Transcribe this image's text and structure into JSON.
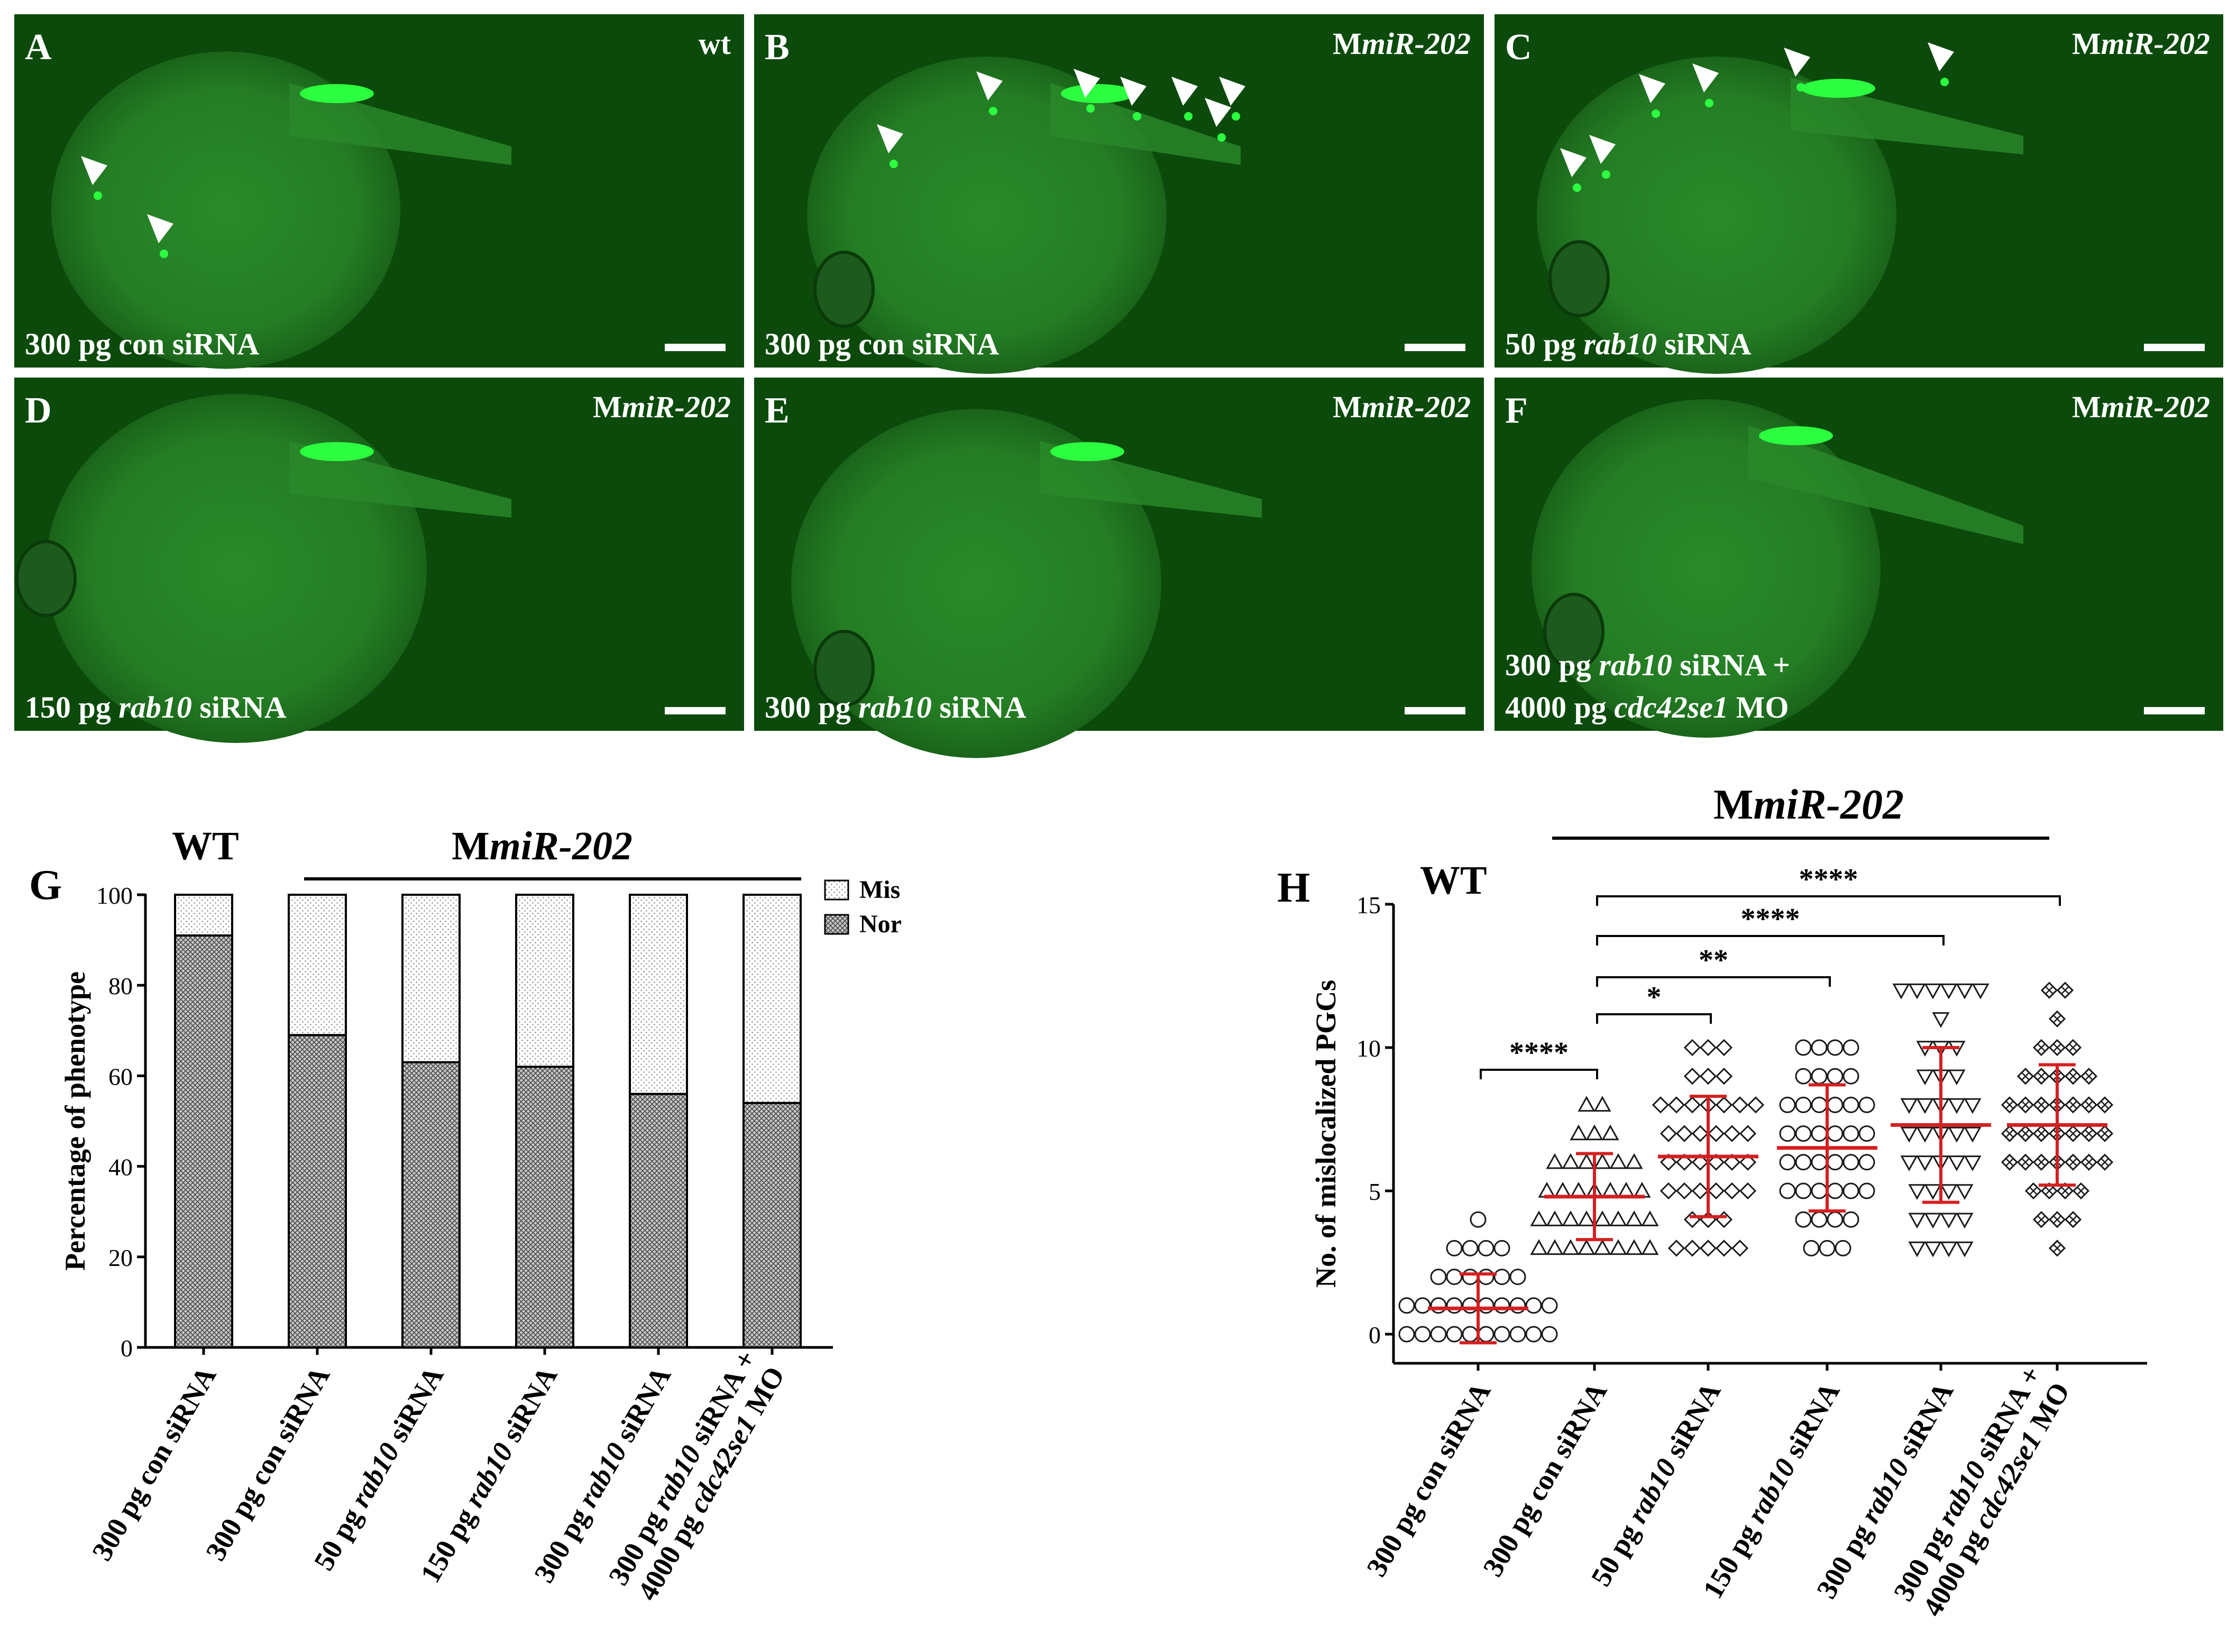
{
  "panels": [
    {
      "letter": "A",
      "genotype": "wt",
      "label_lines": [
        [
          {
            "t": "300 pg con siRNA",
            "i": false
          }
        ]
      ]
    },
    {
      "letter": "B",
      "genotype_prefix": "M",
      "genotype_italic": "miR-202",
      "label_lines": [
        [
          {
            "t": "300 pg con siRNA",
            "i": false
          }
        ]
      ]
    },
    {
      "letter": "C",
      "genotype_prefix": "M",
      "genotype_italic": "miR-202",
      "label_lines": [
        [
          {
            "t": "50 pg ",
            "i": false
          },
          {
            "t": "rab10",
            "i": true
          },
          {
            "t": " siRNA",
            "i": false
          }
        ]
      ]
    },
    {
      "letter": "D",
      "genotype_prefix": "M",
      "genotype_italic": "miR-202",
      "label_lines": [
        [
          {
            "t": "150 pg ",
            "i": false
          },
          {
            "t": "rab10",
            "i": true
          },
          {
            "t": " siRNA",
            "i": false
          }
        ]
      ]
    },
    {
      "letter": "E",
      "genotype_prefix": "M",
      "genotype_italic": "miR-202",
      "label_lines": [
        [
          {
            "t": "300 pg ",
            "i": false
          },
          {
            "t": "rab10",
            "i": true
          },
          {
            "t": " siRNA",
            "i": false
          }
        ]
      ]
    },
    {
      "letter": "F",
      "genotype_prefix": "M",
      "genotype_italic": "miR-202",
      "label_lines": [
        [
          {
            "t": "300 pg ",
            "i": false
          },
          {
            "t": "rab10",
            "i": true
          },
          {
            "t": " siRNA +",
            "i": false
          }
        ],
        [
          {
            "t": "4000 pg ",
            "i": false
          },
          {
            "t": "cdc42se1",
            "i": true
          },
          {
            "t": " MO",
            "i": false
          }
        ]
      ]
    }
  ],
  "categories": [
    [
      {
        "t": "300 pg con siRNA",
        "i": false
      }
    ],
    [
      {
        "t": "300 pg con siRNA",
        "i": false
      }
    ],
    [
      {
        "t": "50 pg ",
        "i": false
      },
      {
        "t": "rab10",
        "i": true
      },
      {
        "t": " siRNA",
        "i": false
      }
    ],
    [
      {
        "t": "150 pg ",
        "i": false
      },
      {
        "t": "rab10",
        "i": true
      },
      {
        "t": " siRNA",
        "i": false
      }
    ],
    [
      {
        "t": "300 pg ",
        "i": false
      },
      {
        "t": "rab10",
        "i": true
      },
      {
        "t": " siRNA",
        "i": false
      }
    ],
    [
      {
        "t": "300 pg ",
        "i": false
      },
      {
        "t": "rab10",
        "i": true
      },
      {
        "t": " siRNA +",
        "i": false
      },
      {
        "br": true
      },
      {
        "t": "4000 pg ",
        "i": false
      },
      {
        "t": "cdc42se1",
        "i": true
      },
      {
        "t": " MO",
        "i": false
      }
    ]
  ],
  "colors": {
    "panel_green": "#0b4a0b",
    "signal": "#2cff40",
    "error_bar": "#d42020"
  },
  "chart_data": [
    {
      "panel": "G",
      "type": "bar",
      "stacked": true,
      "wt_label": "WT",
      "group_label_prefix": "M",
      "group_label_italic": "miR-202",
      "ylabel": "Percentage of phenotype",
      "ylim": [
        0,
        100
      ],
      "yticks": [
        0,
        20,
        40,
        60,
        80,
        100
      ],
      "series": [
        {
          "name": "Nor",
          "values": [
            91,
            69,
            63,
            62,
            56,
            54
          ]
        },
        {
          "name": "Mis",
          "values": [
            9,
            31,
            37,
            38,
            44,
            46
          ]
        }
      ],
      "legend_position": "top-right"
    },
    {
      "panel": "H",
      "type": "scatter",
      "wt_label": "WT",
      "group_label_prefix": "M",
      "group_label_italic": "miR-202",
      "ylabel": "No. of mislocalized PGCs",
      "ylim": [
        0,
        15
      ],
      "yticks": [
        0,
        5,
        10,
        15
      ],
      "markers": [
        "circle",
        "triangle-up",
        "diamond",
        "circle",
        "triangle-down",
        "diamond-x"
      ],
      "groups": [
        {
          "mean": 0.9,
          "sd": 1.2,
          "counts": {
            "0": 10,
            "1": 10,
            "2": 6,
            "3": 4,
            "4": 1
          }
        },
        {
          "mean": 4.8,
          "sd": 1.5,
          "counts": {
            "3": 8,
            "4": 8,
            "5": 7,
            "6": 6,
            "7": 3,
            "8": 2
          }
        },
        {
          "mean": 6.2,
          "sd": 2.1,
          "counts": {
            "3": 5,
            "4": 3,
            "5": 6,
            "6": 6,
            "7": 6,
            "8": 7,
            "9": 3,
            "10": 3
          }
        },
        {
          "mean": 6.5,
          "sd": 2.2,
          "counts": {
            "3": 3,
            "4": 4,
            "5": 6,
            "6": 6,
            "7": 6,
            "8": 6,
            "9": 4,
            "10": 4
          }
        },
        {
          "mean": 7.3,
          "sd": 2.7,
          "counts": {
            "3": 4,
            "4": 4,
            "5": 4,
            "6": 5,
            "7": 5,
            "8": 5,
            "9": 3,
            "10": 3,
            "11": 1,
            "12": 6
          }
        },
        {
          "mean": 7.3,
          "sd": 2.1,
          "counts": {
            "3": 1,
            "4": 3,
            "5": 4,
            "6": 7,
            "7": 7,
            "8": 7,
            "9": 5,
            "10": 3,
            "11": 1,
            "12": 2
          }
        }
      ],
      "significance": [
        {
          "from": 0,
          "to": 1,
          "label": "****"
        },
        {
          "from": 1,
          "to": 2,
          "label": "*"
        },
        {
          "from": 1,
          "to": 3,
          "label": "**"
        },
        {
          "from": 1,
          "to": 4,
          "label": "****"
        },
        {
          "from": 1,
          "to": 5,
          "label": "****"
        }
      ]
    }
  ]
}
